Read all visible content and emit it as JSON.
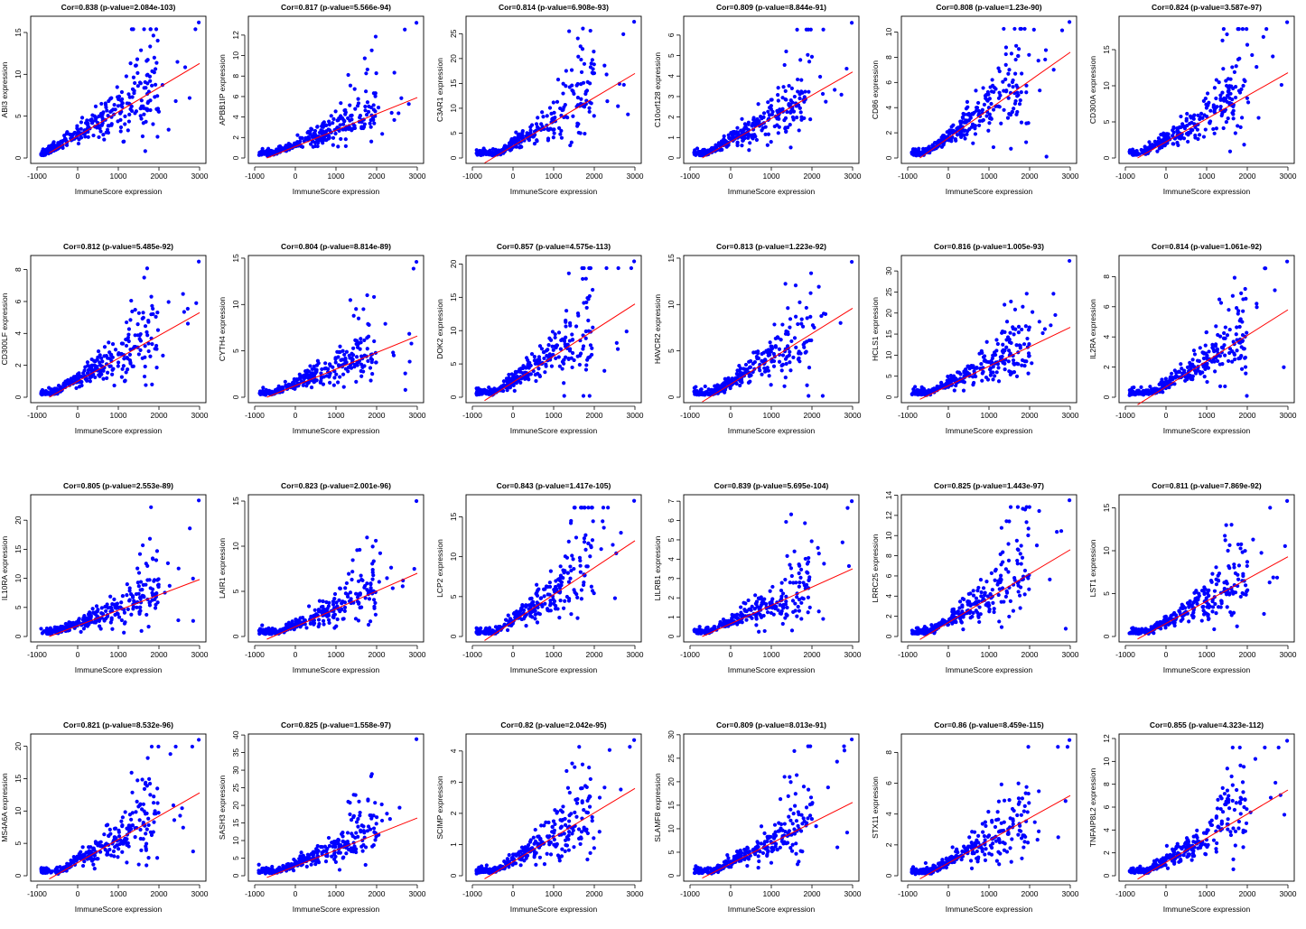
{
  "colors": {
    "points": "#0000ff",
    "fit_line": "#ff0000",
    "axes": "#000000",
    "background": "#ffffff"
  },
  "chart_data": [
    {
      "type": "scatter",
      "title": "Cor=0.838 (p-value=2.084e-103)",
      "xlabel": "ImmuneScore expression",
      "ylabel": "ABI3 expression",
      "xlim": [
        -1000,
        3000
      ],
      "ylim": [
        0,
        16.4
      ],
      "xticks": [
        -1000,
        0,
        1000,
        2000,
        3000
      ],
      "yticks": [
        0,
        5,
        10,
        15
      ],
      "ymax": 16.2,
      "fit": {
        "x": [
          -700,
          3000
        ],
        "y": [
          0.6,
          11.3
        ]
      }
    },
    {
      "type": "scatter",
      "title": "Cor=0.817 (p-value=5.566e-94)",
      "xlabel": "ImmuneScore expression",
      "ylabel": "APBB1IP expression",
      "xlim": [
        -1000,
        3000
      ],
      "ylim": [
        0,
        13.4
      ],
      "xticks": [
        -1000,
        0,
        1000,
        2000,
        3000
      ],
      "yticks": [
        0,
        2,
        4,
        6,
        8,
        10,
        12
      ],
      "ymax": 13.2,
      "fit": {
        "x": [
          -700,
          3000
        ],
        "y": [
          0.0,
          5.9
        ]
      }
    },
    {
      "type": "scatter",
      "title": "Cor=0.814 (p-value=6.908e-93)",
      "xlabel": "ImmuneScore expression",
      "ylabel": "C3AR1 expression",
      "xlim": [
        -1000,
        3000
      ],
      "ylim": [
        0,
        27.6
      ],
      "xticks": [
        -1000,
        0,
        1000,
        2000,
        3000
      ],
      "yticks": [
        0,
        5,
        10,
        15,
        20,
        25
      ],
      "ymax": 27.4,
      "fit": {
        "x": [
          -700,
          3000
        ],
        "y": [
          -1.0,
          17.0
        ]
      }
    },
    {
      "type": "scatter",
      "title": "Cor=0.809 (p-value=8.844e-91)",
      "xlabel": "ImmuneScore expression",
      "ylabel": "C10orf128 expression",
      "xlim": [
        -1000,
        3000
      ],
      "ylim": [
        0,
        6.7
      ],
      "xticks": [
        -1000,
        0,
        1000,
        2000,
        3000
      ],
      "yticks": [
        0,
        1,
        2,
        3,
        4,
        5,
        6
      ],
      "ymax": 6.6,
      "fit": {
        "x": [
          -700,
          3000
        ],
        "y": [
          0.0,
          4.2
        ]
      }
    },
    {
      "type": "scatter",
      "title": "Cor=0.808 (p-value=1.23e-90)",
      "xlabel": "ImmuneScore expression",
      "ylabel": "CD86 expression",
      "xlim": [
        -1000,
        3000
      ],
      "ylim": [
        0,
        10.9
      ],
      "xticks": [
        -1000,
        0,
        1000,
        2000,
        3000
      ],
      "yticks": [
        0,
        2,
        4,
        6,
        8,
        10
      ],
      "ymax": 10.8,
      "fit": {
        "x": [
          -700,
          3000
        ],
        "y": [
          0.0,
          8.4
        ]
      }
    },
    {
      "type": "scatter",
      "title": "Cor=0.824 (p-value=3.587e-97)",
      "xlabel": "ImmuneScore expression",
      "ylabel": "CD300A expression",
      "xlim": [
        -1000,
        3000
      ],
      "ylim": [
        0,
        19.0
      ],
      "xticks": [
        -1000,
        0,
        1000,
        2000,
        3000
      ],
      "yticks": [
        0,
        5,
        10,
        15
      ],
      "ymax": 18.8,
      "fit": {
        "x": [
          -700,
          3000
        ],
        "y": [
          0.0,
          11.8
        ]
      }
    },
    {
      "type": "scatter",
      "title": "Cor=0.812 (p-value=5.485e-92)",
      "xlabel": "ImmuneScore expression",
      "ylabel": "CD300LF expression",
      "xlim": [
        -1000,
        3000
      ],
      "ylim": [
        0,
        8.6
      ],
      "xticks": [
        -1000,
        0,
        1000,
        2000,
        3000
      ],
      "yticks": [
        0,
        2,
        4,
        6,
        8
      ],
      "ymax": 8.5,
      "fit": {
        "x": [
          -700,
          3000
        ],
        "y": [
          0.0,
          5.3
        ]
      }
    },
    {
      "type": "scatter",
      "title": "Cor=0.804 (p-value=8.814e-89)",
      "xlabel": "ImmuneScore expression",
      "ylabel": "CYTH4 expression",
      "xlim": [
        -1000,
        3000
      ],
      "ylim": [
        0,
        14.8
      ],
      "xticks": [
        -1000,
        0,
        1000,
        2000,
        3000
      ],
      "yticks": [
        0,
        5,
        10,
        15
      ],
      "ymax": 14.6,
      "fit": {
        "x": [
          -700,
          3000
        ],
        "y": [
          0.0,
          6.6
        ]
      }
    },
    {
      "type": "scatter",
      "title": "Cor=0.857 (p-value=4.575e-113)",
      "xlabel": "ImmuneScore expression",
      "ylabel": "DOK2 expression",
      "xlim": [
        -1000,
        3000
      ],
      "ylim": [
        0,
        20.6
      ],
      "xticks": [
        -1000,
        0,
        1000,
        2000,
        3000
      ],
      "yticks": [
        0,
        5,
        10,
        15,
        20
      ],
      "ymax": 20.4,
      "fit": {
        "x": [
          -700,
          3000
        ],
        "y": [
          -0.5,
          14.0
        ]
      }
    },
    {
      "type": "scatter",
      "title": "Cor=0.813 (p-value=1.223e-92)",
      "xlabel": "ImmuneScore expression",
      "ylabel": "HAVCR2 expression",
      "xlim": [
        -1000,
        3000
      ],
      "ylim": [
        0,
        14.8
      ],
      "xticks": [
        -1000,
        0,
        1000,
        2000,
        3000
      ],
      "yticks": [
        0,
        5,
        10,
        15
      ],
      "ymax": 14.6,
      "fit": {
        "x": [
          -700,
          3000
        ],
        "y": [
          -0.5,
          9.6
        ]
      }
    },
    {
      "type": "scatter",
      "title": "Cor=0.816 (p-value=1.005e-93)",
      "xlabel": "ImmuneScore expression",
      "ylabel": "HCLS1 expression",
      "xlim": [
        -1000,
        3000
      ],
      "ylim": [
        0,
        32.6
      ],
      "xticks": [
        -1000,
        0,
        1000,
        2000,
        3000
      ],
      "yticks": [
        0,
        5,
        10,
        15,
        20,
        25,
        30
      ],
      "ymax": 32.4,
      "fit": {
        "x": [
          -700,
          3000
        ],
        "y": [
          -0.5,
          16.6
        ]
      }
    },
    {
      "type": "scatter",
      "title": "Cor=0.814 (p-value=1.061e-92)",
      "xlabel": "ImmuneScore expression",
      "ylabel": "IL2RA expression",
      "xlim": [
        -1000,
        3000
      ],
      "ylim": [
        0,
        9.1
      ],
      "xticks": [
        -1000,
        0,
        1000,
        2000,
        3000
      ],
      "yticks": [
        0,
        2,
        4,
        6,
        8
      ],
      "ymax": 9.0,
      "fit": {
        "x": [
          -700,
          3000
        ],
        "y": [
          -0.5,
          5.8
        ]
      }
    },
    {
      "type": "scatter",
      "title": "Cor=0.805 (p-value=2.553e-89)",
      "xlabel": "ImmuneScore expression",
      "ylabel": "IL10RA expression",
      "xlim": [
        -1000,
        3000
      ],
      "ylim": [
        0,
        23.6
      ],
      "xticks": [
        -1000,
        0,
        1000,
        2000,
        3000
      ],
      "yticks": [
        0,
        5,
        10,
        15,
        20
      ],
      "ymax": 23.4,
      "fit": {
        "x": [
          -700,
          3000
        ],
        "y": [
          0.0,
          9.8
        ]
      }
    },
    {
      "type": "scatter",
      "title": "Cor=0.823 (p-value=2.001e-96)",
      "xlabel": "ImmuneScore expression",
      "ylabel": "LAIR1 expression",
      "xlim": [
        -1000,
        3000
      ],
      "ylim": [
        0,
        15.2
      ],
      "xticks": [
        -1000,
        0,
        1000,
        2000,
        3000
      ],
      "yticks": [
        0,
        5,
        10,
        15
      ],
      "ymax": 15.0,
      "fit": {
        "x": [
          -700,
          3000
        ],
        "y": [
          -0.3,
          7.0
        ]
      }
    },
    {
      "type": "scatter",
      "title": "Cor=0.843 (p-value=1.417e-105)",
      "xlabel": "ImmuneScore expression",
      "ylabel": "LCP2 expression",
      "xlim": [
        -1000,
        3000
      ],
      "ylim": [
        0,
        17.2
      ],
      "xticks": [
        -1000,
        0,
        1000,
        2000,
        3000
      ],
      "yticks": [
        0,
        5,
        10,
        15
      ],
      "ymax": 17.0,
      "fit": {
        "x": [
          -700,
          3000
        ],
        "y": [
          -0.5,
          12.0
        ]
      }
    },
    {
      "type": "scatter",
      "title": "Cor=0.839 (p-value=5.695e-104)",
      "xlabel": "ImmuneScore expression",
      "ylabel": "LILRB1 expression",
      "xlim": [
        -1000,
        3000
      ],
      "ylim": [
        0,
        7.1
      ],
      "xticks": [
        -1000,
        0,
        1000,
        2000,
        3000
      ],
      "yticks": [
        0,
        1,
        2,
        3,
        4,
        5,
        6,
        7
      ],
      "ymax": 7.0,
      "fit": {
        "x": [
          -700,
          3000
        ],
        "y": [
          0.0,
          3.5
        ]
      }
    },
    {
      "type": "scatter",
      "title": "Cor=0.825 (p-value=1.443e-97)",
      "xlabel": "ImmuneScore expression",
      "ylabel": "LRRC25 expression",
      "xlim": [
        -1000,
        3000
      ],
      "ylim": [
        0,
        13.6
      ],
      "xticks": [
        -1000,
        0,
        1000,
        2000,
        3000
      ],
      "yticks": [
        0,
        2,
        4,
        6,
        8,
        10,
        12,
        14
      ],
      "ymax": 13.5,
      "fit": {
        "x": [
          -700,
          3000
        ],
        "y": [
          -0.3,
          8.6
        ]
      }
    },
    {
      "type": "scatter",
      "title": "Cor=0.811 (p-value=7.869e-92)",
      "xlabel": "ImmuneScore expression",
      "ylabel": "LST1 expression",
      "xlim": [
        -1000,
        3000
      ],
      "ylim": [
        0,
        16.0
      ],
      "xticks": [
        -1000,
        0,
        1000,
        2000,
        3000
      ],
      "yticks": [
        0,
        5,
        10,
        15
      ],
      "ymax": 15.8,
      "fit": {
        "x": [
          -700,
          3000
        ],
        "y": [
          -0.3,
          9.3
        ]
      }
    },
    {
      "type": "scatter",
      "title": "Cor=0.821 (p-value=8.532e-96)",
      "xlabel": "ImmuneScore expression",
      "ylabel": "MS4A6A expression",
      "xlim": [
        -1000,
        3000
      ],
      "ylim": [
        0,
        21.2
      ],
      "xticks": [
        -1000,
        0,
        1000,
        2000,
        3000
      ],
      "yticks": [
        0,
        5,
        10,
        15,
        20
      ],
      "ymax": 21.0,
      "fit": {
        "x": [
          -700,
          3000
        ],
        "y": [
          -0.5,
          12.8
        ]
      }
    },
    {
      "type": "scatter",
      "title": "Cor=0.825 (p-value=1.558e-97)",
      "xlabel": "ImmuneScore expression",
      "ylabel": "SASH3 expression",
      "xlim": [
        -1000,
        3000
      ],
      "ylim": [
        0,
        39.0
      ],
      "xticks": [
        -1000,
        0,
        1000,
        2000,
        3000
      ],
      "yticks": [
        0,
        5,
        10,
        15,
        20,
        25,
        30,
        35,
        40
      ],
      "ymax": 38.8,
      "fit": {
        "x": [
          -700,
          3000
        ],
        "y": [
          -0.5,
          16.4
        ]
      }
    },
    {
      "type": "scatter",
      "title": "Cor=0.82 (p-value=2.042e-95)",
      "xlabel": "ImmuneScore expression",
      "ylabel": "SCIMP expression",
      "xlim": [
        -1000,
        3000
      ],
      "ylim": [
        0,
        4.4
      ],
      "xticks": [
        -1000,
        0,
        1000,
        2000,
        3000
      ],
      "yticks": [
        0,
        1,
        2,
        3,
        4
      ],
      "ymax": 4.35,
      "fit": {
        "x": [
          -700,
          3000
        ],
        "y": [
          -0.1,
          2.8
        ]
      }
    },
    {
      "type": "scatter",
      "title": "Cor=0.809 (p-value=8.013e-91)",
      "xlabel": "ImmuneScore expression",
      "ylabel": "SLAMF8 expression",
      "xlim": [
        -1000,
        3000
      ],
      "ylim": [
        0,
        29.2
      ],
      "xticks": [
        -1000,
        0,
        1000,
        2000,
        3000
      ],
      "yticks": [
        0,
        5,
        10,
        15,
        20,
        25,
        30
      ],
      "ymax": 29.0,
      "fit": {
        "x": [
          -700,
          3000
        ],
        "y": [
          -0.5,
          15.6
        ]
      }
    },
    {
      "type": "scatter",
      "title": "Cor=0.86 (p-value=8.459e-115)",
      "xlabel": "ImmuneScore expression",
      "ylabel": "STX11 expression",
      "xlim": [
        -1000,
        3000
      ],
      "ylim": [
        0,
        8.9
      ],
      "xticks": [
        -1000,
        0,
        1000,
        2000,
        3000
      ],
      "yticks": [
        0,
        2,
        4,
        6,
        8
      ],
      "ymax": 8.8,
      "fit": {
        "x": [
          -700,
          3000
        ],
        "y": [
          -0.2,
          5.2
        ]
      }
    },
    {
      "type": "scatter",
      "title": "Cor=0.855 (p-value=4.323e-112)",
      "xlabel": "ImmuneScore expression",
      "ylabel": "TNFAIP8L2 expression",
      "xlim": [
        -1000,
        3000
      ],
      "ylim": [
        0,
        12.0
      ],
      "xticks": [
        -1000,
        0,
        1000,
        2000,
        3000
      ],
      "yticks": [
        0,
        2,
        4,
        6,
        8,
        10,
        12
      ],
      "ymax": 11.8,
      "fit": {
        "x": [
          -700,
          3000
        ],
        "y": [
          -0.3,
          7.5
        ]
      }
    }
  ]
}
